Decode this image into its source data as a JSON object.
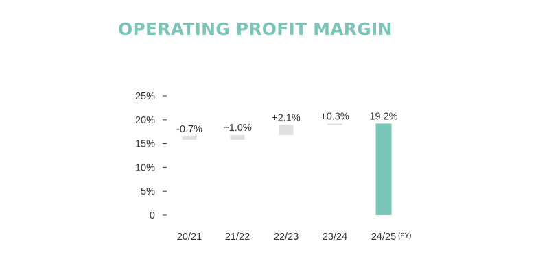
{
  "title": "OPERATING PROFIT MARGIN",
  "colors": {
    "title": "#7cc4b8",
    "step_bar": "#e0e0e0",
    "total_bar": "#79c5b8",
    "text": "#333333"
  },
  "chart_data": {
    "type": "bar",
    "subtype": "waterfall",
    "title": "OPERATING PROFIT MARGIN",
    "xlabel": "",
    "ylabel": "",
    "ylim": [
      0,
      25
    ],
    "yticks": [
      "25%",
      "20%",
      "15%",
      "10%",
      "5%",
      "0"
    ],
    "ytick_values": [
      25,
      20,
      15,
      10,
      5,
      0
    ],
    "grid": false,
    "categories": [
      "20/21",
      "21/22",
      "22/23",
      "23/24",
      "24/25"
    ],
    "category_suffixes": [
      "",
      "",
      "",
      "",
      "(FY)"
    ],
    "bars": [
      {
        "category": "20/21",
        "label": "-0.7%",
        "start": 16.5,
        "end": 15.8,
        "kind": "step"
      },
      {
        "category": "21/22",
        "label": "+1.0%",
        "start": 15.8,
        "end": 16.8,
        "kind": "step"
      },
      {
        "category": "22/23",
        "label": "+2.1%",
        "start": 16.8,
        "end": 18.9,
        "kind": "step"
      },
      {
        "category": "23/24",
        "label": "+0.3%",
        "start": 18.9,
        "end": 19.2,
        "kind": "step"
      },
      {
        "category": "24/25",
        "label": "19.2%",
        "start": 0,
        "end": 19.2,
        "kind": "total"
      }
    ]
  }
}
